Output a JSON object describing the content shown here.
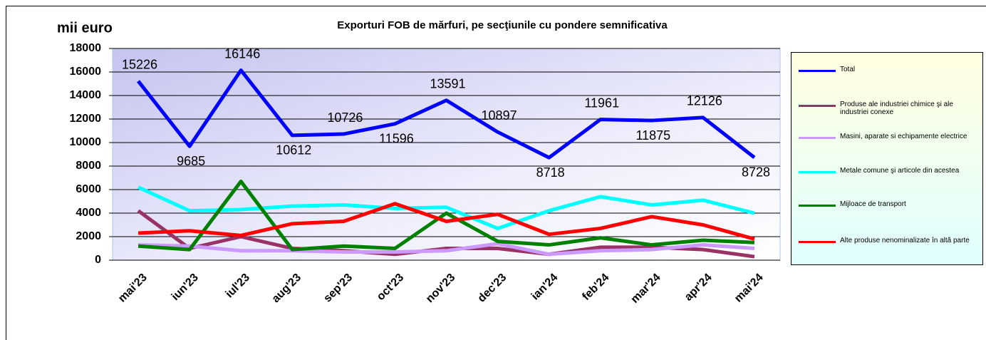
{
  "chart_data": {
    "type": "line",
    "title": "Exporturi FOB de mărfuri, pe secţiunile  cu pondere semnificativa",
    "y_label": "mii euro",
    "categories": [
      "mai'23",
      "iun'23",
      "iul'23",
      "aug'23",
      "sep'23",
      "oct'23",
      "nov'23",
      "dec'23",
      "ian'24",
      "feb'24",
      "mar'24",
      "apr'24",
      "mai'24"
    ],
    "ylim": [
      0,
      18000
    ],
    "yticks": [
      0,
      2000,
      4000,
      6000,
      8000,
      10000,
      12000,
      14000,
      16000,
      18000
    ],
    "grid": true,
    "series": [
      {
        "name": "Total",
        "color": "#0000ff",
        "values": [
          15226,
          9685,
          16146,
          10612,
          10726,
          11596,
          13591,
          10897,
          8718,
          11961,
          11875,
          12126,
          8728
        ],
        "data_labels": true
      },
      {
        "name": "Produse ale industriei chimice şi ale industriei conexe",
        "color": "#993366",
        "values": [
          4200,
          1000,
          2000,
          1000,
          800,
          500,
          1000,
          1000,
          500,
          1100,
          1100,
          900,
          300
        ]
      },
      {
        "name": "Masini, aparate si echipamente electrice",
        "color": "#cc99ff",
        "values": [
          1300,
          1200,
          800,
          800,
          700,
          700,
          800,
          1400,
          500,
          800,
          900,
          1300,
          1000
        ]
      },
      {
        "name": "Metale comune şi articole din acestea",
        "color": "#00ffff",
        "values": [
          6200,
          4200,
          4300,
          4600,
          4700,
          4400,
          4500,
          2700,
          4200,
          5400,
          4700,
          5100,
          4000
        ]
      },
      {
        "name": "Mijloace de transport",
        "color": "#008000",
        "values": [
          1200,
          900,
          6700,
          900,
          1200,
          1000,
          4000,
          1600,
          1300,
          1900,
          1300,
          1700,
          1500
        ]
      },
      {
        "name": "Alte produse nenominalizate în altă parte",
        "color": "#ff0000",
        "values": [
          2300,
          2500,
          2100,
          3100,
          3300,
          4800,
          3300,
          3900,
          2200,
          2700,
          3700,
          3000,
          1800
        ]
      }
    ]
  }
}
